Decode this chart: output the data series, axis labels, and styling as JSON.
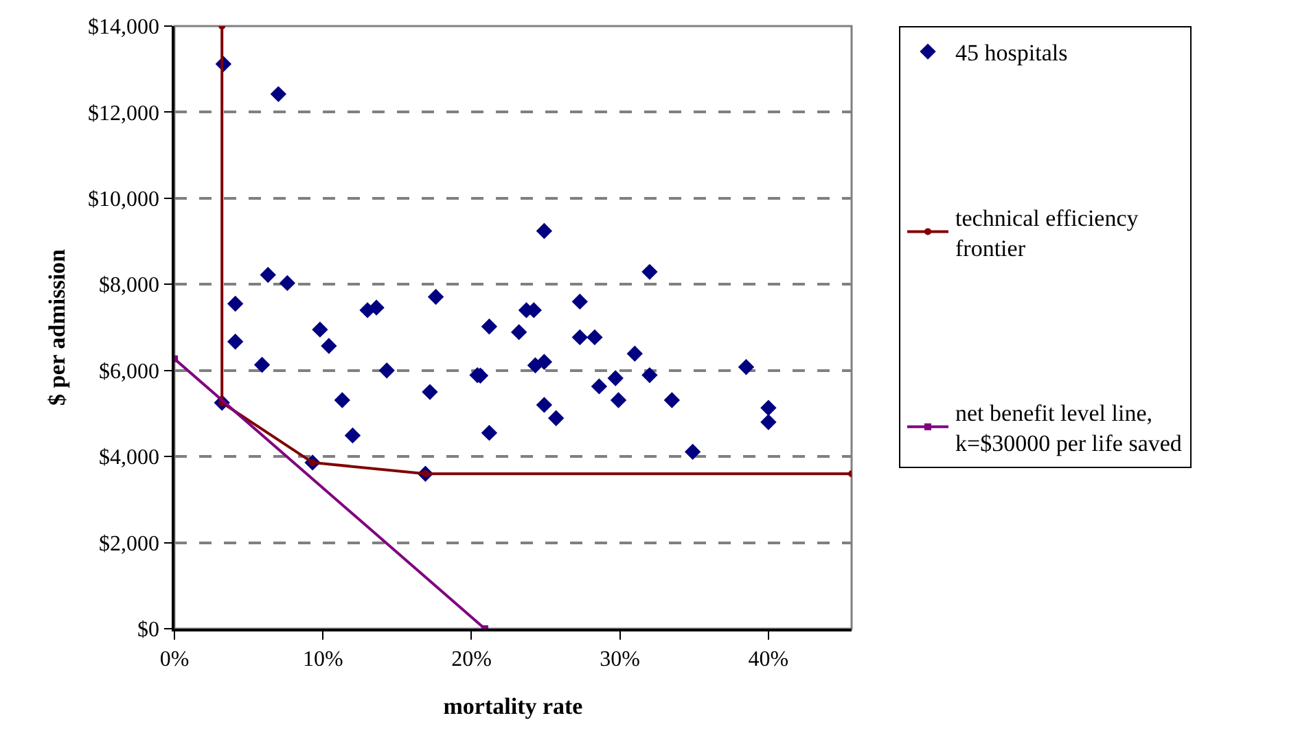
{
  "chart_data": {
    "type": "scatter",
    "xlabel": "mortality rate",
    "ylabel": "$ per admission",
    "xlim": [
      0,
      45.6
    ],
    "ylim": [
      0,
      14000
    ],
    "xticks": [
      {
        "value": 0,
        "label": "0%"
      },
      {
        "value": 10,
        "label": "10%"
      },
      {
        "value": 20,
        "label": "20%"
      },
      {
        "value": 30,
        "label": "30%"
      },
      {
        "value": 40,
        "label": "40%"
      }
    ],
    "yticks": [
      {
        "value": 0,
        "label": "$0"
      },
      {
        "value": 2000,
        "label": "$2,000"
      },
      {
        "value": 4000,
        "label": "$4,000"
      },
      {
        "value": 6000,
        "label": "$6,000"
      },
      {
        "value": 8000,
        "label": "$8,000"
      },
      {
        "value": 10000,
        "label": "$10,000"
      },
      {
        "value": 12000,
        "label": "$12,000"
      },
      {
        "value": 14000,
        "label": "$14,000"
      }
    ],
    "grid": "y",
    "legend": "right",
    "series": [
      {
        "name": "45 hospitals",
        "marker": "diamond",
        "color": "#000080",
        "x": [
          3.3,
          7.0,
          4.1,
          6.3,
          7.6,
          4.1,
          5.9,
          9.8,
          10.4,
          3.2,
          11.3,
          12.0,
          9.3,
          16.9,
          13.0,
          13.6,
          14.3,
          17.6,
          17.2,
          20.4,
          20.6,
          21.2,
          21.2,
          23.2,
          23.7,
          24.2,
          24.3,
          24.9,
          24.9,
          24.9,
          25.7,
          27.3,
          27.3,
          28.3,
          28.6,
          29.7,
          29.9,
          31.0,
          32.0,
          32.0,
          33.5,
          34.9,
          38.5,
          40.0,
          40.0
        ],
        "values": [
          13120,
          12420,
          7550,
          8220,
          8030,
          6670,
          6130,
          6950,
          6570,
          5250,
          5310,
          4490,
          3860,
          3600,
          7400,
          7460,
          6000,
          7710,
          5500,
          5890,
          5880,
          7020,
          4550,
          6890,
          7400,
          7400,
          6120,
          6200,
          5200,
          9240,
          4890,
          7600,
          6770,
          6770,
          5630,
          5820,
          5310,
          6390,
          8290,
          5890,
          5310,
          4110,
          6080,
          5130,
          4800
        ]
      },
      {
        "name": "technical efficiency\nfrontier",
        "type": "line",
        "marker": "circle",
        "line_style": "solid",
        "color": "#800000",
        "x": [
          3.2,
          3.2,
          9.3,
          16.9,
          45.6
        ],
        "values": [
          14000,
          5250,
          3860,
          3600,
          3600
        ]
      },
      {
        "name": "net benefit level line,\nk=$30000 per life saved",
        "type": "line",
        "marker": "square",
        "line_style": "solid",
        "color": "#800080",
        "x": [
          0,
          20.9
        ],
        "values": [
          6270,
          0
        ]
      }
    ]
  }
}
